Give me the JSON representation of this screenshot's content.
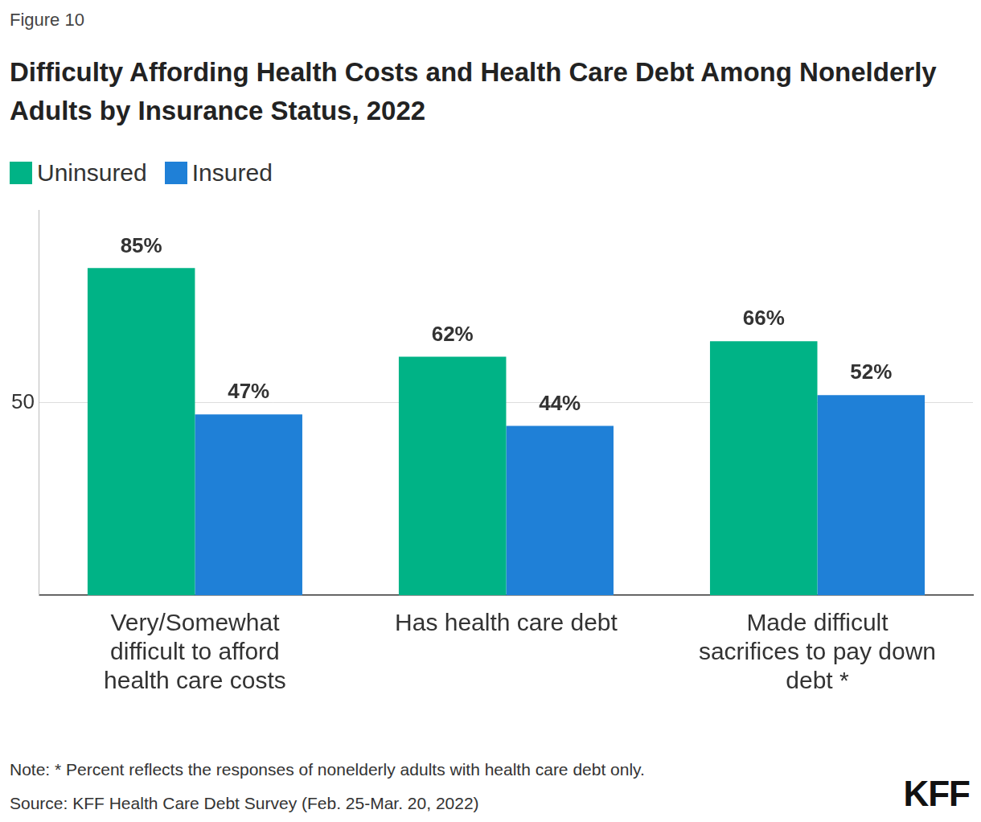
{
  "chart_data": {
    "type": "bar",
    "figure": "Figure 10",
    "title": "Difficulty Affording Health Costs and Health Care Debt Among Nonelderly Adults by Insurance Status, 2022",
    "categories": [
      "Very/Somewhat difficult to afford health care costs",
      "Has health care debt",
      "Made difficult sacrifices to pay down debt *"
    ],
    "series": [
      {
        "name": "Uninsured",
        "color": "#00b386",
        "values": [
          85,
          62,
          66
        ],
        "value_labels": [
          "85%",
          "62%",
          "66%"
        ]
      },
      {
        "name": "Insured",
        "color": "#1f80d7",
        "values": [
          47,
          44,
          52
        ],
        "value_labels": [
          "47%",
          "44%",
          "52%"
        ]
      }
    ],
    "ylim": [
      0,
      100
    ],
    "yticks": [
      50
    ],
    "grid": true,
    "legend": "top-left",
    "data_labels": true,
    "notes": [
      "Note: * Percent reflects the responses of nonelderly adults with health care debt only.",
      "Source: KFF Health Care Debt Survey (Feb. 25-Mar. 20, 2022)"
    ],
    "brand": "KFF"
  }
}
